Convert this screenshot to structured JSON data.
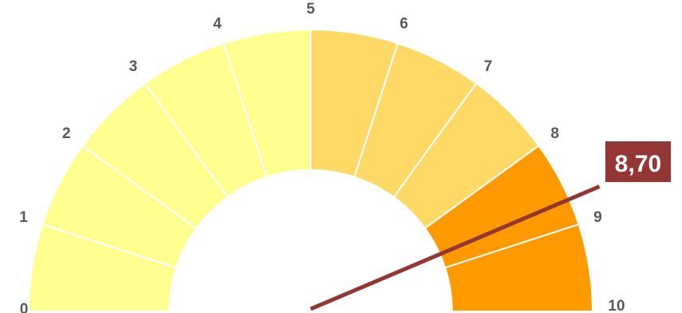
{
  "chart_data": {
    "type": "gauge",
    "min": 0,
    "max": 10,
    "value": 8.7,
    "value_label": "8,70",
    "tick_labels": [
      "0",
      "1",
      "2",
      "3",
      "4",
      "5",
      "6",
      "7",
      "8",
      "9",
      "10"
    ],
    "bands": [
      {
        "from": 0,
        "to": 5,
        "color": "#FFFF8F"
      },
      {
        "from": 5,
        "to": 8,
        "color": "#FFD966"
      },
      {
        "from": 8,
        "to": 10,
        "color": "#FF9900"
      }
    ],
    "needle_color": "#943634",
    "value_box_color": "#943634",
    "segment_divider_color": "#ffffff"
  }
}
